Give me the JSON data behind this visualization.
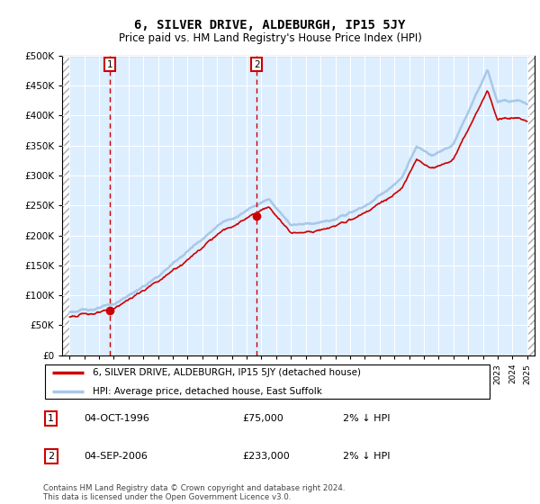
{
  "title": "6, SILVER DRIVE, ALDEBURGH, IP15 5JY",
  "subtitle": "Price paid vs. HM Land Registry's House Price Index (HPI)",
  "legend_line1": "6, SILVER DRIVE, ALDEBURGH, IP15 5JY (detached house)",
  "legend_line2": "HPI: Average price, detached house, East Suffolk",
  "transaction1_date": "04-OCT-1996",
  "transaction1_price": "£75,000",
  "transaction1_hpi": "2% ↓ HPI",
  "transaction1_year": 1996.75,
  "transaction1_value": 75000,
  "transaction2_date": "04-SEP-2006",
  "transaction2_price": "£233,000",
  "transaction2_hpi": "2% ↓ HPI",
  "transaction2_year": 2006.67,
  "transaction2_value": 233000,
  "copyright": "Contains HM Land Registry data © Crown copyright and database right 2024.\nThis data is licensed under the Open Government Licence v3.0.",
  "hpi_color": "#a8c8e8",
  "price_color": "#cc0000",
  "dot_color": "#cc0000",
  "vline_color": "#cc0000",
  "bg_main": "#ddeeff",
  "ylim": [
    0,
    500000
  ],
  "xlim_start": 1993.5,
  "xlim_end": 2025.5,
  "hatch_end": 1994.0,
  "hatch_start_right": 2025.0
}
